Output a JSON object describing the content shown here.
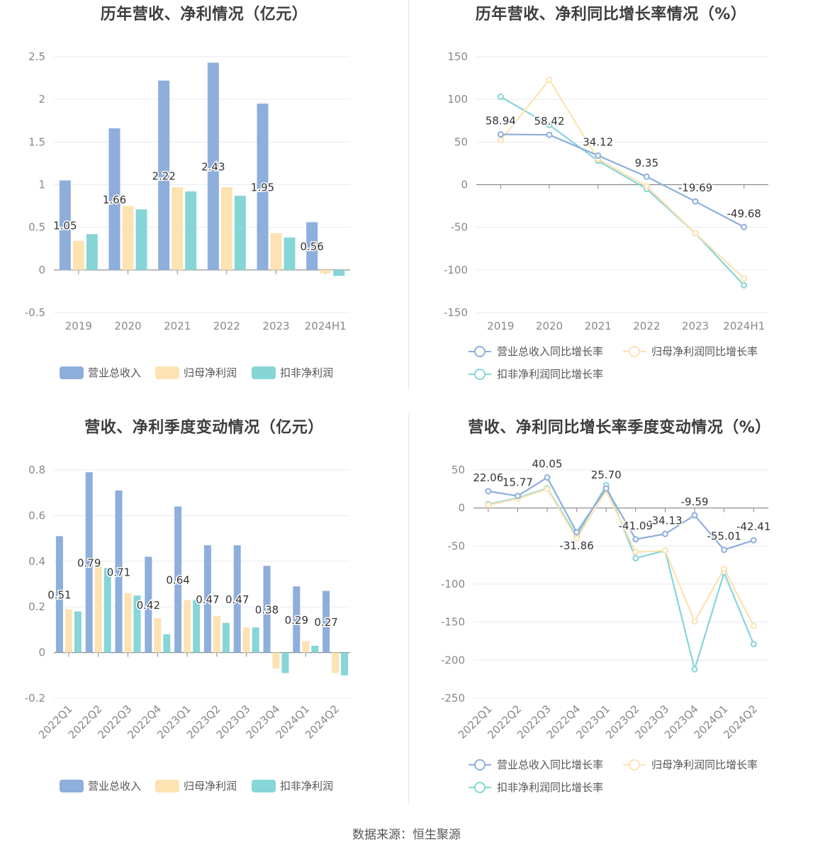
{
  "colors": {
    "revenue": "#8eaedc",
    "parent_profit": "#fde2b2",
    "deducted_profit": "#86d5d7",
    "axis_text": "#888888",
    "grid": "#e8eaf2"
  },
  "legend": {
    "bar": [
      "营业总收入",
      "归母净利润",
      "扣非净利润"
    ],
    "line": [
      "营业总收入同比增长率",
      "归母净利润同比增长率",
      "扣非净利润同比增长率"
    ]
  },
  "source": "数据来源：恒生聚源",
  "chart_data": [
    {
      "id": "annual_bar",
      "type": "bar",
      "title": "历年营收、净利情况（亿元）",
      "categories": [
        "2019",
        "2020",
        "2021",
        "2022",
        "2023",
        "2024H1"
      ],
      "ylim": [
        -0.5,
        2.5
      ],
      "yticks": [
        -0.5,
        0,
        0.5,
        1,
        1.5,
        2,
        2.5
      ],
      "ytick_labels": [
        "-0.5",
        "0",
        "0.5",
        "1",
        "1.5",
        "2",
        "2.5"
      ],
      "grid": true,
      "legend_position": "bottom",
      "series": [
        {
          "name": "营业总收入",
          "values": [
            1.05,
            1.66,
            2.22,
            2.43,
            1.95,
            0.56
          ],
          "labels": [
            "1.05",
            "1.66",
            "2.22",
            "2.43",
            "1.95",
            "0.56"
          ]
        },
        {
          "name": "归母净利润",
          "values": [
            0.34,
            0.75,
            0.97,
            0.97,
            0.43,
            -0.04
          ]
        },
        {
          "name": "扣非净利润",
          "values": [
            0.42,
            0.71,
            0.92,
            0.87,
            0.38,
            -0.07
          ]
        }
      ]
    },
    {
      "id": "annual_line",
      "type": "line",
      "title": "历年营收、净利同比增长率情况（%）",
      "categories": [
        "2019",
        "2020",
        "2021",
        "2022",
        "2023",
        "2024H1"
      ],
      "ylim": [
        -150,
        150
      ],
      "yticks": [
        -150,
        -100,
        -50,
        0,
        50,
        100,
        150
      ],
      "ytick_labels": [
        "-150",
        "-100",
        "-50",
        "0",
        "50",
        "100",
        "150"
      ],
      "grid": true,
      "legend_position": "bottom",
      "series": [
        {
          "name": "营业总收入同比增长率",
          "values": [
            58.94,
            58.42,
            34.12,
            9.35,
            -19.69,
            -49.68
          ],
          "labels": [
            "58.94",
            "58.42",
            "34.12",
            "9.35",
            "-19.69",
            "-49.68"
          ]
        },
        {
          "name": "归母净利润同比增长率",
          "values": [
            52,
            123,
            30,
            -2,
            -57,
            -110
          ]
        },
        {
          "name": "扣非净利润同比增长率",
          "values": [
            103,
            70,
            28,
            -5,
            -57,
            -118
          ]
        }
      ]
    },
    {
      "id": "quarterly_bar",
      "type": "bar",
      "title": "营收、净利季度变动情况（亿元）",
      "categories": [
        "2022Q1",
        "2022Q2",
        "2022Q3",
        "2022Q4",
        "2023Q1",
        "2023Q2",
        "2023Q3",
        "2023Q4",
        "2024Q1",
        "2024Q2"
      ],
      "ylim": [
        -0.2,
        0.8
      ],
      "yticks": [
        -0.2,
        0,
        0.2,
        0.4,
        0.6,
        0.8
      ],
      "ytick_labels": [
        "-0.2",
        "0",
        "0.2",
        "0.4",
        "0.6",
        "0.8"
      ],
      "grid": true,
      "legend_position": "bottom",
      "series": [
        {
          "name": "营业总收入",
          "values": [
            0.51,
            0.79,
            0.71,
            0.42,
            0.64,
            0.47,
            0.47,
            0.38,
            0.29,
            0.27
          ],
          "labels": [
            "0.51",
            "0.79",
            "0.71",
            "0.42",
            "0.64",
            "0.47",
            "0.47",
            "0.38",
            "0.29",
            "0.27"
          ]
        },
        {
          "name": "归母净利润",
          "values": [
            0.19,
            0.38,
            0.26,
            0.15,
            0.23,
            0.16,
            0.11,
            -0.07,
            0.05,
            -0.09
          ]
        },
        {
          "name": "扣非净利润",
          "values": [
            0.18,
            0.37,
            0.25,
            0.08,
            0.23,
            0.13,
            0.11,
            -0.09,
            0.03,
            -0.1
          ]
        }
      ]
    },
    {
      "id": "quarterly_line",
      "type": "line",
      "title": "营收、净利同比增长率季度变动情况（%）",
      "categories": [
        "2022Q1",
        "2022Q2",
        "2022Q3",
        "2022Q4",
        "2023Q1",
        "2023Q2",
        "2023Q3",
        "2023Q4",
        "2024Q1",
        "2024Q2"
      ],
      "ylim": [
        -250,
        50
      ],
      "yticks": [
        -250,
        -200,
        -150,
        -100,
        -50,
        0,
        50
      ],
      "ytick_labels": [
        "-250",
        "-200",
        "-150",
        "-100",
        "-50",
        "0",
        "50"
      ],
      "grid": true,
      "legend_position": "bottom",
      "series": [
        {
          "name": "营业总收入同比增长率",
          "values": [
            22.06,
            15.77,
            40.05,
            -31.86,
            25.7,
            -41.09,
            -34.13,
            -9.59,
            -55.01,
            -42.41
          ],
          "labels": [
            "22.06",
            "15.77",
            "40.05",
            "-31.86",
            "25.70",
            "-41.09",
            "-34.13",
            "-9.59",
            "-55.01",
            "-42.41"
          ]
        },
        {
          "name": "归母净利润同比增长率",
          "values": [
            4,
            12,
            25,
            -40,
            23,
            -58,
            -56,
            -149,
            -80,
            -155
          ]
        },
        {
          "name": "扣非净利润同比增长率",
          "values": [
            5,
            13,
            26,
            -37,
            30,
            -66,
            -56,
            -212,
            -85,
            -179
          ]
        }
      ]
    }
  ]
}
